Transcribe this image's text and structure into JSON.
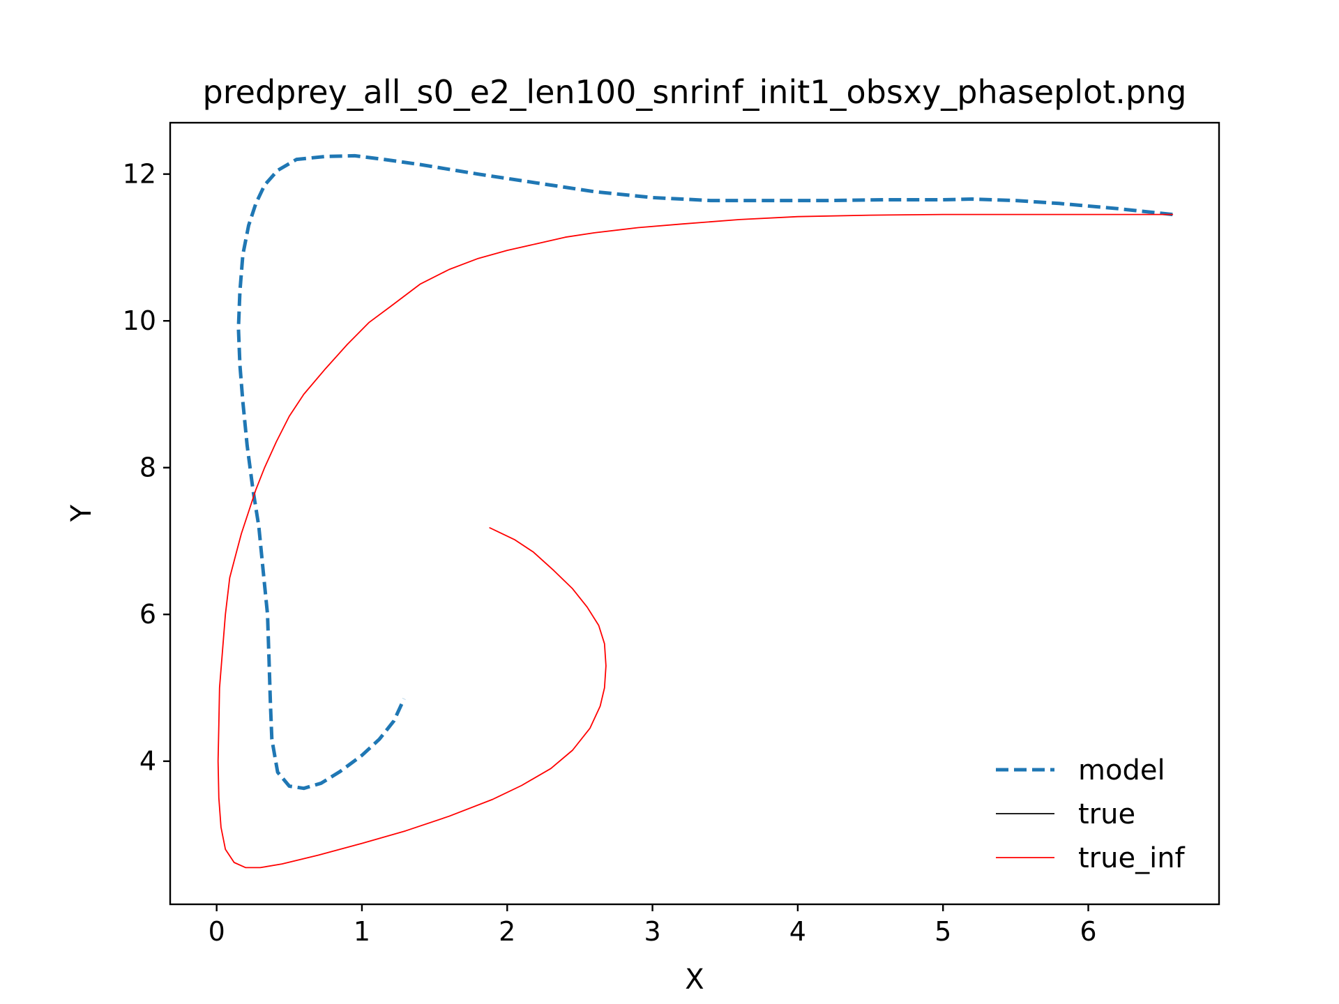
{
  "chart_data": {
    "type": "line",
    "title": "predprey_all_s0_e2_len100_snrinf_init1_obsxy_phaseplot.png",
    "xlabel": "X",
    "ylabel": "Y",
    "xlim": [
      -0.32,
      6.9
    ],
    "ylim": [
      2.05,
      12.7
    ],
    "xticks": [
      0,
      1,
      2,
      3,
      4,
      5,
      6
    ],
    "yticks": [
      4,
      6,
      8,
      10,
      12
    ],
    "xtick_labels": [
      "0",
      "1",
      "2",
      "3",
      "4",
      "5",
      "6"
    ],
    "ytick_labels": [
      "4",
      "6",
      "8",
      "10",
      "12"
    ],
    "legend_position": "lower right",
    "series": [
      {
        "name": "model",
        "color": "#1f77b4",
        "style": "dashed",
        "x": [
          6.58,
          6.2,
          5.8,
          5.5,
          5.2,
          5.0,
          4.6,
          4.2,
          3.8,
          3.4,
          3.0,
          2.6,
          2.2,
          1.8,
          1.4,
          1.15,
          0.95,
          0.75,
          0.55,
          0.42,
          0.33,
          0.27,
          0.22,
          0.18,
          0.16,
          0.15,
          0.16,
          0.18,
          0.21,
          0.25,
          0.29,
          0.32,
          0.35,
          0.36,
          0.37,
          0.38,
          0.42,
          0.5,
          0.6,
          0.72,
          0.85,
          1.0,
          1.12,
          1.22,
          1.29
        ],
        "y": [
          11.45,
          11.53,
          11.6,
          11.64,
          11.66,
          11.65,
          11.65,
          11.64,
          11.64,
          11.64,
          11.68,
          11.76,
          11.88,
          12.0,
          12.13,
          12.2,
          12.25,
          12.24,
          12.2,
          12.05,
          11.85,
          11.6,
          11.3,
          10.9,
          10.4,
          9.9,
          9.4,
          8.9,
          8.3,
          7.7,
          7.2,
          6.6,
          6.0,
          5.4,
          4.8,
          4.3,
          3.85,
          3.66,
          3.63,
          3.7,
          3.86,
          4.08,
          4.3,
          4.55,
          4.85
        ]
      },
      {
        "name": "true",
        "color": "#000000",
        "style": "solid",
        "x": [],
        "y": []
      },
      {
        "name": "true_inf",
        "color": "#ff0000",
        "style": "solid",
        "x": [
          6.58,
          6.0,
          5.5,
          5.0,
          4.5,
          4.0,
          3.6,
          3.2,
          2.9,
          2.6,
          2.4,
          2.2,
          2.0,
          1.8,
          1.6,
          1.4,
          1.2,
          1.05,
          0.9,
          0.75,
          0.6,
          0.5,
          0.41,
          0.33,
          0.27,
          0.22,
          0.17,
          0.13,
          0.09,
          0.06,
          0.04,
          0.02,
          0.015,
          0.01,
          0.015,
          0.03,
          0.06,
          0.12,
          0.2,
          0.3,
          0.45,
          0.7,
          1.0,
          1.3,
          1.6,
          1.9,
          2.1,
          2.3,
          2.45,
          2.57,
          2.64,
          2.67,
          2.68,
          2.67,
          2.63,
          2.55,
          2.45,
          2.32,
          2.18,
          2.05,
          1.88
        ],
        "y": [
          11.45,
          11.45,
          11.45,
          11.45,
          11.44,
          11.42,
          11.38,
          11.32,
          11.27,
          11.2,
          11.14,
          11.05,
          10.96,
          10.85,
          10.7,
          10.5,
          10.2,
          9.98,
          9.68,
          9.35,
          9.0,
          8.7,
          8.35,
          8.0,
          7.7,
          7.4,
          7.1,
          6.8,
          6.5,
          6.0,
          5.5,
          5.0,
          4.5,
          4.0,
          3.5,
          3.1,
          2.8,
          2.62,
          2.55,
          2.55,
          2.6,
          2.72,
          2.88,
          3.05,
          3.25,
          3.48,
          3.67,
          3.9,
          4.15,
          4.45,
          4.75,
          5.0,
          5.3,
          5.6,
          5.85,
          6.1,
          6.35,
          6.6,
          6.85,
          7.02,
          7.18
        ]
      }
    ]
  }
}
